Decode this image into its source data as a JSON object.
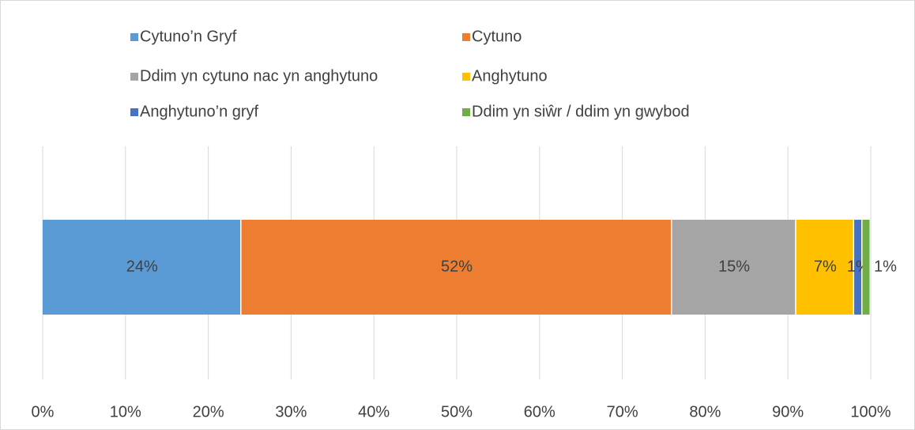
{
  "chart_data": {
    "type": "stacked-bar-horizontal",
    "categories": [
      null
    ],
    "series": [
      {
        "name": "Cytuno’n Gryf",
        "color": "#5b9bd5",
        "values": [
          24
        ],
        "value_labels": [
          "24%"
        ]
      },
      {
        "name": "Cytuno",
        "color": "#ed7d31",
        "values": [
          52
        ],
        "value_labels": [
          "52%"
        ]
      },
      {
        "name": "Ddim yn cytuno nac yn anghytuno",
        "color": "#a5a5a5",
        "values": [
          15
        ],
        "value_labels": [
          "15%"
        ]
      },
      {
        "name": "Anghytuno",
        "color": "#ffc000",
        "values": [
          7
        ],
        "value_labels": [
          "7%"
        ]
      },
      {
        "name": "Anghytuno’n gryf",
        "color": "#4472c4",
        "values": [
          1
        ],
        "value_labels": [
          "1%"
        ]
      },
      {
        "name": "Ddim yn siŵr / ddim yn gwybod",
        "color": "#70ad47",
        "values": [
          1
        ],
        "value_labels": [
          "1%"
        ]
      }
    ],
    "xlim": [
      0,
      100
    ],
    "xticks": [
      {
        "value": 0,
        "label": "0%"
      },
      {
        "value": 10,
        "label": "10%"
      },
      {
        "value": 20,
        "label": "20%"
      },
      {
        "value": 30,
        "label": "30%"
      },
      {
        "value": 40,
        "label": "40%"
      },
      {
        "value": 50,
        "label": "50%"
      },
      {
        "value": 60,
        "label": "60%"
      },
      {
        "value": 70,
        "label": "70%"
      },
      {
        "value": 80,
        "label": "80%"
      },
      {
        "value": 90,
        "label": "90%"
      },
      {
        "value": 100,
        "label": "100%"
      }
    ],
    "grid": true,
    "legend": "top"
  }
}
